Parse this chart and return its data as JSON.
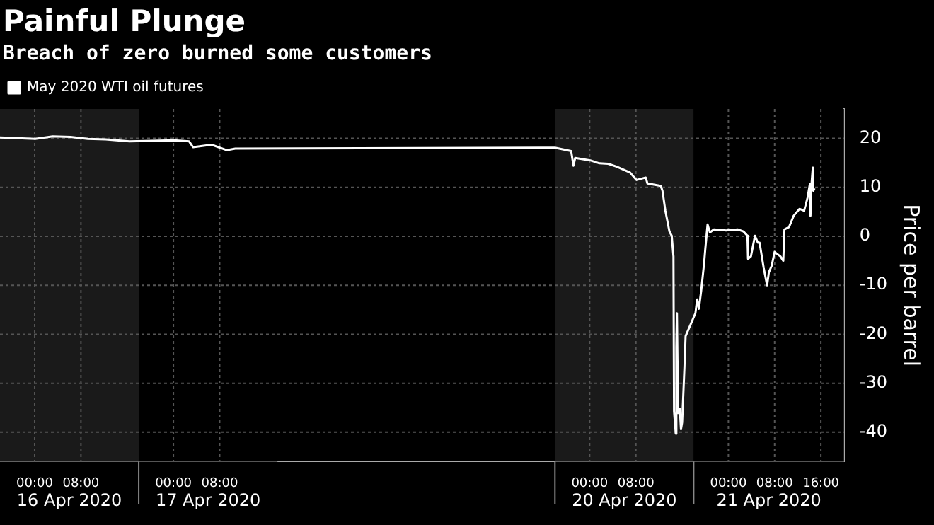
{
  "chart_data": {
    "type": "line",
    "title": "Painful Plunge",
    "subtitle": "Breach of zero burned some customers",
    "ylabel": "Price per barrel",
    "x": [
      "2020-04-15T18:00",
      "2020-04-16T00:06",
      "2020-04-16T03:06",
      "2020-04-16T06:12",
      "2020-04-16T09:12",
      "2020-04-16T12:18",
      "2020-04-16T16:24",
      "2020-04-17T00:06",
      "2020-04-17T02:42",
      "2020-04-17T03:24",
      "2020-04-17T06:36",
      "2020-04-17T09:12",
      "2020-04-17T10:42",
      "2020-04-19T18:00",
      "2020-04-19T20:48",
      "2020-04-19T21:12",
      "2020-04-19T21:30",
      "2020-04-20T00:06",
      "2020-04-20T01:42",
      "2020-04-20T03:12",
      "2020-04-20T04:42",
      "2020-04-20T07:00",
      "2020-04-20T08:06",
      "2020-04-20T09:42",
      "2020-04-20T10:00",
      "2020-04-20T12:18",
      "2020-04-20T12:36",
      "2020-04-20T13:06",
      "2020-04-20T13:48",
      "2020-04-20T14:12",
      "2020-04-20T14:30",
      "2020-04-20T14:36",
      "2020-04-20T14:54",
      "2020-04-20T15:00",
      "2020-04-20T15:06",
      "2020-04-20T15:18",
      "2020-04-20T15:36",
      "2020-04-20T15:48",
      "2020-04-20T16:00",
      "2020-04-20T16:24",
      "2020-04-20T16:36",
      "2020-04-20T18:18",
      "2020-04-20T18:36",
      "2020-04-20T18:54",
      "2020-04-20T19:18",
      "2020-04-20T19:48",
      "2020-04-20T20:00",
      "2020-04-20T20:24",
      "2020-04-20T20:48",
      "2020-04-20T21:30",
      "2020-04-20T23:36",
      "2020-04-21T01:36",
      "2020-04-21T02:36",
      "2020-04-21T03:18",
      "2020-04-21T03:24",
      "2020-04-21T03:54",
      "2020-04-21T04:36",
      "2020-04-21T05:06",
      "2020-04-21T05:24",
      "2020-04-21T06:06",
      "2020-04-21T06:42",
      "2020-04-21T07:00",
      "2020-04-21T07:30",
      "2020-04-21T08:00",
      "2020-04-21T09:00",
      "2020-04-21T09:30",
      "2020-04-21T09:42",
      "2020-04-21T10:30",
      "2020-04-21T11:18",
      "2020-04-21T12:18",
      "2020-04-21T13:06",
      "2020-04-21T13:42",
      "2020-04-21T14:06",
      "2020-04-21T14:12",
      "2020-04-21T14:18",
      "2020-04-21T14:36",
      "2020-04-21T14:42",
      "2020-04-21T14:54"
    ],
    "series": [
      {
        "name": "May 2020 WTI oil futures",
        "color": "#ffffff",
        "values": [
          20.2,
          19.9,
          20.4,
          20.3,
          19.9,
          19.8,
          19.4,
          19.6,
          19.4,
          18.2,
          18.7,
          17.6,
          17.9,
          18.1,
          17.4,
          14.4,
          16.0,
          15.5,
          14.9,
          14.8,
          14.2,
          13.0,
          11.5,
          12.0,
          10.8,
          10.3,
          9.3,
          5.2,
          1.0,
          0.1,
          -4.1,
          -35.7,
          -40.3,
          -22.7,
          -15.7,
          -36.1,
          -35.2,
          -39.4,
          -38.0,
          -26.8,
          -20.4,
          -15.7,
          -12.9,
          -14.8,
          -11.1,
          -5.5,
          -2.7,
          2.4,
          0.8,
          1.4,
          1.2,
          1.4,
          1.0,
          0.1,
          -4.6,
          -4.1,
          0.1,
          -1.3,
          -1.3,
          -6.4,
          -10.0,
          -7.4,
          -6.0,
          -3.2,
          -4.1,
          -5.0,
          1.4,
          1.9,
          4.2,
          5.6,
          5.2,
          7.9,
          10.7,
          4.2,
          9.3,
          14.0,
          9.3,
          9.8
        ]
      }
    ],
    "xlim": [
      "2020-04-15T18:00",
      "2020-04-21T20:00"
    ],
    "xticks": [
      {
        "value": "2020-04-16T00:00",
        "label": "00:00"
      },
      {
        "value": "2020-04-16T08:00",
        "label": "08:00"
      },
      {
        "value": "2020-04-17T00:00",
        "label": "00:00"
      },
      {
        "value": "2020-04-17T08:00",
        "label": "08:00"
      },
      {
        "value": "2020-04-20T00:00",
        "label": "00:00"
      },
      {
        "value": "2020-04-20T08:00",
        "label": "08:00"
      },
      {
        "value": "2020-04-21T00:00",
        "label": "00:00"
      },
      {
        "value": "2020-04-21T08:00",
        "label": "08:00"
      },
      {
        "value": "2020-04-21T16:00",
        "label": "16:00"
      }
    ],
    "ylim": [
      -46,
      26
    ],
    "yticks": [
      -40,
      -30,
      -20,
      -10,
      0,
      10,
      20
    ],
    "bands": [
      {
        "axis": "x",
        "from": "2020-04-15T18:00",
        "to": "2020-04-16T18:00",
        "label": "16 Apr 2020",
        "color": "#1a1a1a"
      },
      {
        "axis": "x",
        "from": "2020-04-16T18:00",
        "to": "2020-04-17T18:00",
        "label": "17 Apr 2020",
        "color": "#000000"
      },
      {
        "axis": "x",
        "from": "2020-04-19T18:00",
        "to": "2020-04-20T18:00",
        "label": "20 Apr 2020",
        "color": "#1a1a1a"
      },
      {
        "axis": "x",
        "from": "2020-04-20T18:00",
        "to": "2020-04-21T20:00",
        "label": "21 Apr 2020",
        "color": "#000000"
      }
    ],
    "grid": true,
    "legend": "top left",
    "marker": "none",
    "line_style": "solid"
  }
}
